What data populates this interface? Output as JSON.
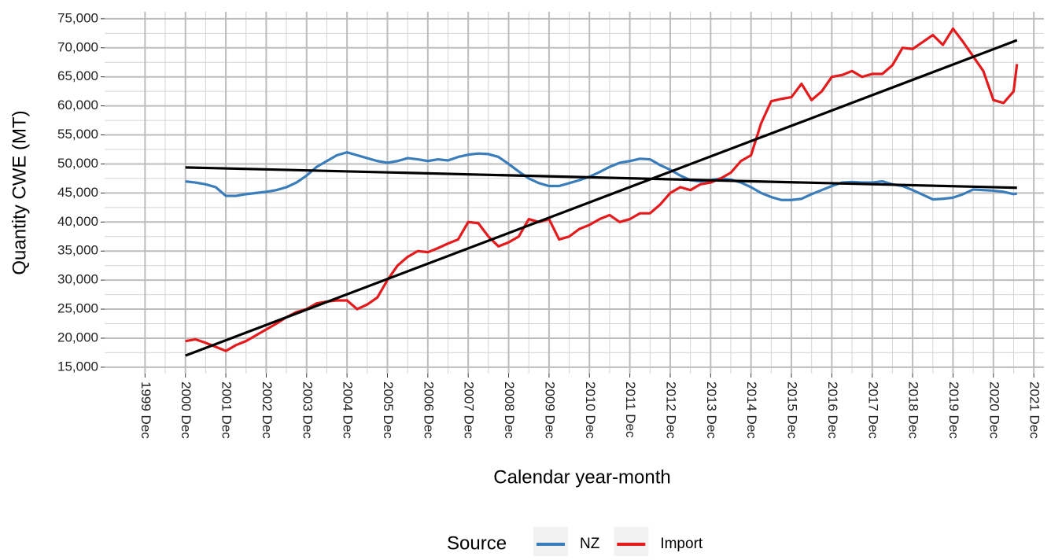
{
  "chart_data": {
    "type": "line",
    "x_label": "Calendar year-month",
    "y_label": "Quantity CWE (MT)",
    "legend_title": "Source",
    "legend_position": "bottom",
    "grid": true,
    "xlim": [
      "1998-12",
      "2022-03"
    ],
    "ylim": [
      13900,
      76200
    ],
    "xticks": [
      {
        "value": "1999-12",
        "label": "1999 Dec"
      },
      {
        "value": "2000-12",
        "label": "2000 Dec"
      },
      {
        "value": "2001-12",
        "label": "2001 Dec"
      },
      {
        "value": "2002-12",
        "label": "2002 Dec"
      },
      {
        "value": "2003-12",
        "label": "2003 Dec"
      },
      {
        "value": "2004-12",
        "label": "2004 Dec"
      },
      {
        "value": "2005-12",
        "label": "2005 Dec"
      },
      {
        "value": "2006-12",
        "label": "2006 Dec"
      },
      {
        "value": "2007-12",
        "label": "2007 Dec"
      },
      {
        "value": "2008-12",
        "label": "2008 Dec"
      },
      {
        "value": "2009-12",
        "label": "2009 Dec"
      },
      {
        "value": "2010-12",
        "label": "2010 Dec"
      },
      {
        "value": "2011-12",
        "label": "2011 Dec"
      },
      {
        "value": "2012-12",
        "label": "2012 Dec"
      },
      {
        "value": "2013-12",
        "label": "2013 Dec"
      },
      {
        "value": "2014-12",
        "label": "2014 Dec"
      },
      {
        "value": "2015-12",
        "label": "2015 Dec"
      },
      {
        "value": "2016-12",
        "label": "2016 Dec"
      },
      {
        "value": "2017-12",
        "label": "2017 Dec"
      },
      {
        "value": "2018-12",
        "label": "2018 Dec"
      },
      {
        "value": "2019-12",
        "label": "2019 Dec"
      },
      {
        "value": "2020-12",
        "label": "2020 Dec"
      },
      {
        "value": "2021-12",
        "label": "2021 Dec"
      }
    ],
    "yticks": [
      {
        "value": 15000,
        "label": "15,000"
      },
      {
        "value": 20000,
        "label": "20,000"
      },
      {
        "value": 25000,
        "label": "25,000"
      },
      {
        "value": 30000,
        "label": "30,000"
      },
      {
        "value": 35000,
        "label": "35,000"
      },
      {
        "value": 40000,
        "label": "40,000"
      },
      {
        "value": 45000,
        "label": "45,000"
      },
      {
        "value": 50000,
        "label": "50,000"
      },
      {
        "value": 55000,
        "label": "55,000"
      },
      {
        "value": 60000,
        "label": "60,000"
      },
      {
        "value": 65000,
        "label": "65,000"
      },
      {
        "value": 70000,
        "label": "70,000"
      },
      {
        "value": 75000,
        "label": "75,000"
      }
    ],
    "x": [
      "2000-12",
      "2001-03",
      "2001-06",
      "2001-09",
      "2001-12",
      "2002-03",
      "2002-06",
      "2002-09",
      "2002-12",
      "2003-03",
      "2003-06",
      "2003-09",
      "2003-12",
      "2004-03",
      "2004-06",
      "2004-09",
      "2004-12",
      "2005-03",
      "2005-06",
      "2005-09",
      "2005-12",
      "2006-03",
      "2006-06",
      "2006-09",
      "2006-12",
      "2007-03",
      "2007-06",
      "2007-09",
      "2007-12",
      "2008-03",
      "2008-06",
      "2008-09",
      "2008-12",
      "2009-03",
      "2009-06",
      "2009-09",
      "2009-12",
      "2010-03",
      "2010-06",
      "2010-09",
      "2010-12",
      "2011-03",
      "2011-06",
      "2011-09",
      "2011-12",
      "2012-03",
      "2012-06",
      "2012-09",
      "2012-12",
      "2013-03",
      "2013-06",
      "2013-09",
      "2013-12",
      "2014-03",
      "2014-06",
      "2014-09",
      "2014-12",
      "2015-03",
      "2015-06",
      "2015-09",
      "2015-12",
      "2016-03",
      "2016-06",
      "2016-09",
      "2016-12",
      "2017-03",
      "2017-06",
      "2017-09",
      "2017-12",
      "2018-03",
      "2018-06",
      "2018-09",
      "2018-12",
      "2019-03",
      "2019-06",
      "2019-09",
      "2019-12",
      "2020-03",
      "2020-06",
      "2020-09",
      "2020-12",
      "2021-03",
      "2021-06",
      "2021-07"
    ],
    "series": [
      {
        "name": "NZ",
        "color": "#3a7dba",
        "values": [
          47000,
          46800,
          46500,
          46000,
          44500,
          44500,
          44800,
          45000,
          45200,
          45500,
          46000,
          46800,
          48000,
          49500,
          50500,
          51500,
          52000,
          51500,
          51000,
          50500,
          50200,
          50500,
          51000,
          50800,
          50500,
          50800,
          50600,
          51200,
          51600,
          51800,
          51700,
          51200,
          50000,
          48700,
          47500,
          46700,
          46200,
          46200,
          46700,
          47200,
          47800,
          48600,
          49500,
          50200,
          50500,
          50900,
          50800,
          49800,
          49000,
          48000,
          47200,
          47000,
          47200,
          47500,
          47300,
          46800,
          46000,
          45000,
          44300,
          43800,
          43800,
          44000,
          44800,
          45500,
          46200,
          46800,
          46900,
          46800,
          46800,
          47000,
          46500,
          46200,
          45500,
          44700,
          43900,
          44000,
          44200,
          44800,
          45600,
          45500,
          45400,
          45200,
          44800,
          44900
        ]
      },
      {
        "name": "Import",
        "color": "#e41a1c",
        "values": [
          19500,
          19800,
          19200,
          18500,
          17800,
          18800,
          19500,
          20500,
          21500,
          22500,
          23600,
          24500,
          25000,
          26000,
          26300,
          26500,
          26500,
          25000,
          25800,
          27000,
          30000,
          32500,
          34000,
          35000,
          34800,
          35500,
          36300,
          37000,
          40000,
          39800,
          37500,
          35800,
          36500,
          37500,
          40500,
          40000,
          40500,
          37000,
          37500,
          38800,
          39500,
          40500,
          41200,
          40000,
          40500,
          41500,
          41500,
          43000,
          45000,
          46000,
          45500,
          46500,
          46800,
          47500,
          48500,
          50500,
          51500,
          57000,
          60800,
          61200,
          61500,
          63800,
          61000,
          62500,
          65000,
          65300,
          66000,
          65000,
          65500,
          65500,
          67000,
          70000,
          69800,
          71000,
          72200,
          70500,
          73300,
          71000,
          68500,
          66000,
          61000,
          60500,
          62500,
          67200
        ]
      }
    ],
    "trend_lines": [
      {
        "color": "#000000",
        "x": [
          "2000-12",
          "2021-07"
        ],
        "values": [
          49400,
          45900
        ]
      },
      {
        "color": "#000000",
        "x": [
          "2000-12",
          "2021-07"
        ],
        "values": [
          17000,
          71300
        ]
      }
    ]
  }
}
